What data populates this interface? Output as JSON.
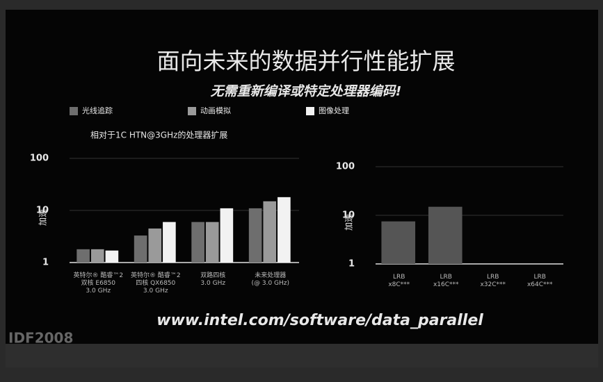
{
  "slide": {
    "title": "面向未来的数据并行性能扩展",
    "subtitle": "无需重新编译或特定处理器编码!",
    "url": "www.intel.com/software/data_parallel",
    "event": "IDF2008"
  },
  "chart_data": [
    {
      "type": "bar",
      "title": "相对于1C HTN@3GHz的处理器扩展",
      "y_label": "加速",
      "log_scale": true,
      "ylim": [
        1,
        100
      ],
      "yticks": [
        1,
        10,
        100
      ],
      "categories": [
        "英特尔® 酷睿™2\n双核 E6850\n3.0 GHz",
        "英特尔® 酷睿™2\n四核 QX6850\n3.0 GHz",
        "双路四核\n3.0 GHz",
        "未来处理器\n(@ 3.0 GHz)"
      ],
      "series": [
        {
          "name": "光线追踪",
          "color": "#6e6e6e",
          "values": [
            1.8,
            3.3,
            6,
            11
          ]
        },
        {
          "name": "动画模拟",
          "color": "#9a9a9a",
          "values": [
            1.8,
            4.5,
            6,
            15
          ]
        },
        {
          "name": "图像处理",
          "color": "#f2f2f2",
          "values": [
            1.7,
            6,
            11,
            18
          ]
        }
      ]
    },
    {
      "type": "bar",
      "log_scale": true,
      "ylim": [
        1,
        100
      ],
      "yticks": [
        1,
        10,
        100
      ],
      "y_label": "加速",
      "categories": [
        "LRB\nx8C***",
        "LRB\nx16C***",
        "LRB\nx32C***",
        "LRB\nx64C***"
      ],
      "color": "#555555",
      "values": [
        7.5,
        15,
        null,
        null
      ]
    }
  ]
}
